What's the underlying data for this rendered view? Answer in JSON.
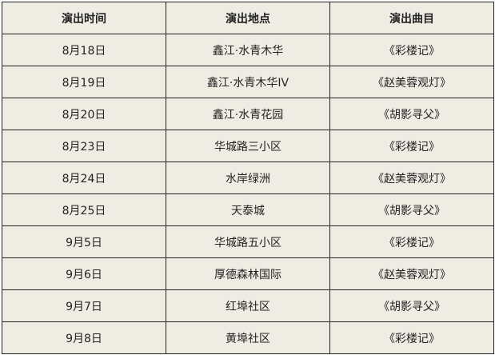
{
  "headers": [
    "演出时间",
    "演出地点",
    "演出曲目"
  ],
  "rows": [
    [
      "8月18日",
      "鑫江·水青木华",
      "《彩楼记》"
    ],
    [
      "8月19日",
      "鑫江·水青木华IV",
      "《赵美蓉观灯》"
    ],
    [
      "8月20日",
      "鑫江·水青花园",
      "《胡影寻父》"
    ],
    [
      "8月23日",
      "华城路三小区",
      "《彩楼记》"
    ],
    [
      "8月24日",
      "水岸绿洲",
      "《赵美蓉观灯》"
    ],
    [
      "8月25日",
      "天泰城",
      "《胡影寻父》"
    ],
    [
      "9月5日",
      "华城路五小区",
      "《彩楼记》"
    ],
    [
      "9月6日",
      "厚德森林国际",
      "《赵美蓉观灯》"
    ],
    [
      "9月7日",
      "红埠社区",
      "《胡影寻父》"
    ],
    [
      "9月8日",
      "黄埠社区",
      "《彩楼记》"
    ]
  ],
  "colors": {
    "background": "#efece4",
    "border": "#222222"
  }
}
